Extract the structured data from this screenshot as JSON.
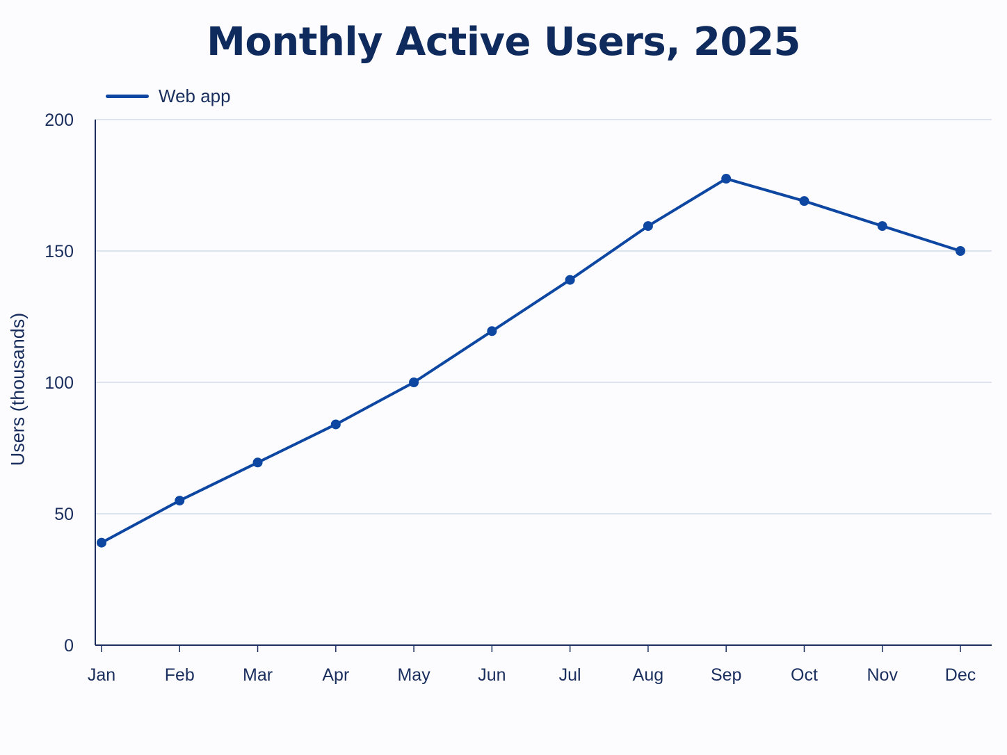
{
  "chart_data": {
    "type": "line",
    "title": "Monthly Active Users, 2025",
    "xlabel": "",
    "ylabel": "Users (thousands)",
    "categories": [
      "Jan",
      "Feb",
      "Mar",
      "Apr",
      "May",
      "Jun",
      "Jul",
      "Aug",
      "Sep",
      "Oct",
      "Nov",
      "Dec"
    ],
    "series": [
      {
        "name": "Web app",
        "color": "#0d47a1",
        "values": [
          39,
          55,
          69.5,
          84,
          100,
          119.5,
          139,
          159.5,
          177.5,
          169,
          159.5,
          150
        ]
      }
    ],
    "ylim": [
      0,
      200
    ],
    "yticks": [
      0,
      50,
      100,
      150,
      200
    ],
    "grid": true,
    "legend_position": "top-left",
    "colors": {
      "axis": "#1a2f5e",
      "grid": "#d3dbe8",
      "text": "#1a2f5e",
      "title": "#0f2a5c"
    }
  }
}
